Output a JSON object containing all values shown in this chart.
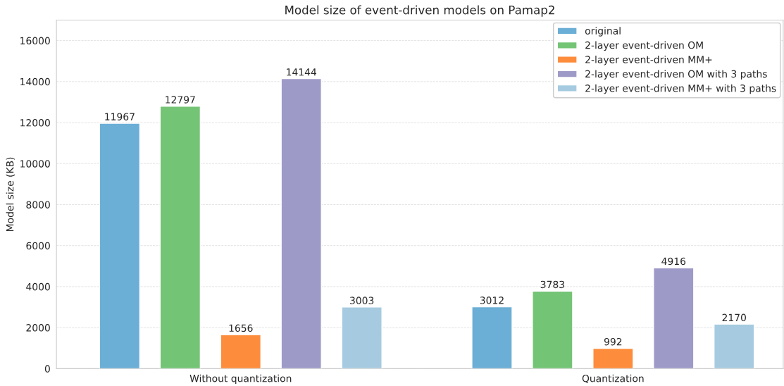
{
  "chart_data": {
    "type": "bar",
    "title": "Model size of event-driven models on Pamap2",
    "ylabel": "Model size (KB)",
    "categories": [
      "Without quantization",
      "Quantization"
    ],
    "series": [
      {
        "name": "original",
        "color": "#6baed6",
        "values": [
          11967,
          3012
        ]
      },
      {
        "name": "2-layer event-driven OM",
        "color": "#74c476",
        "values": [
          12797,
          3783
        ]
      },
      {
        "name": "2-layer event-driven MM+",
        "color": "#fd8d3c",
        "values": [
          1656,
          992
        ]
      },
      {
        "name": "2-layer event-driven OM with 3 paths",
        "color": "#9e9ac8",
        "values": [
          14144,
          4916
        ]
      },
      {
        "name": "2-layer event-driven MM+ with 3 paths",
        "color": "#a6cbe0",
        "values": [
          3003,
          2170
        ]
      }
    ],
    "ylim": [
      0,
      17000
    ],
    "yticks": [
      0,
      2000,
      4000,
      6000,
      8000,
      10000,
      12000,
      14000,
      16000
    ],
    "grid": "y",
    "legend": "top right",
    "data_labels": true
  }
}
